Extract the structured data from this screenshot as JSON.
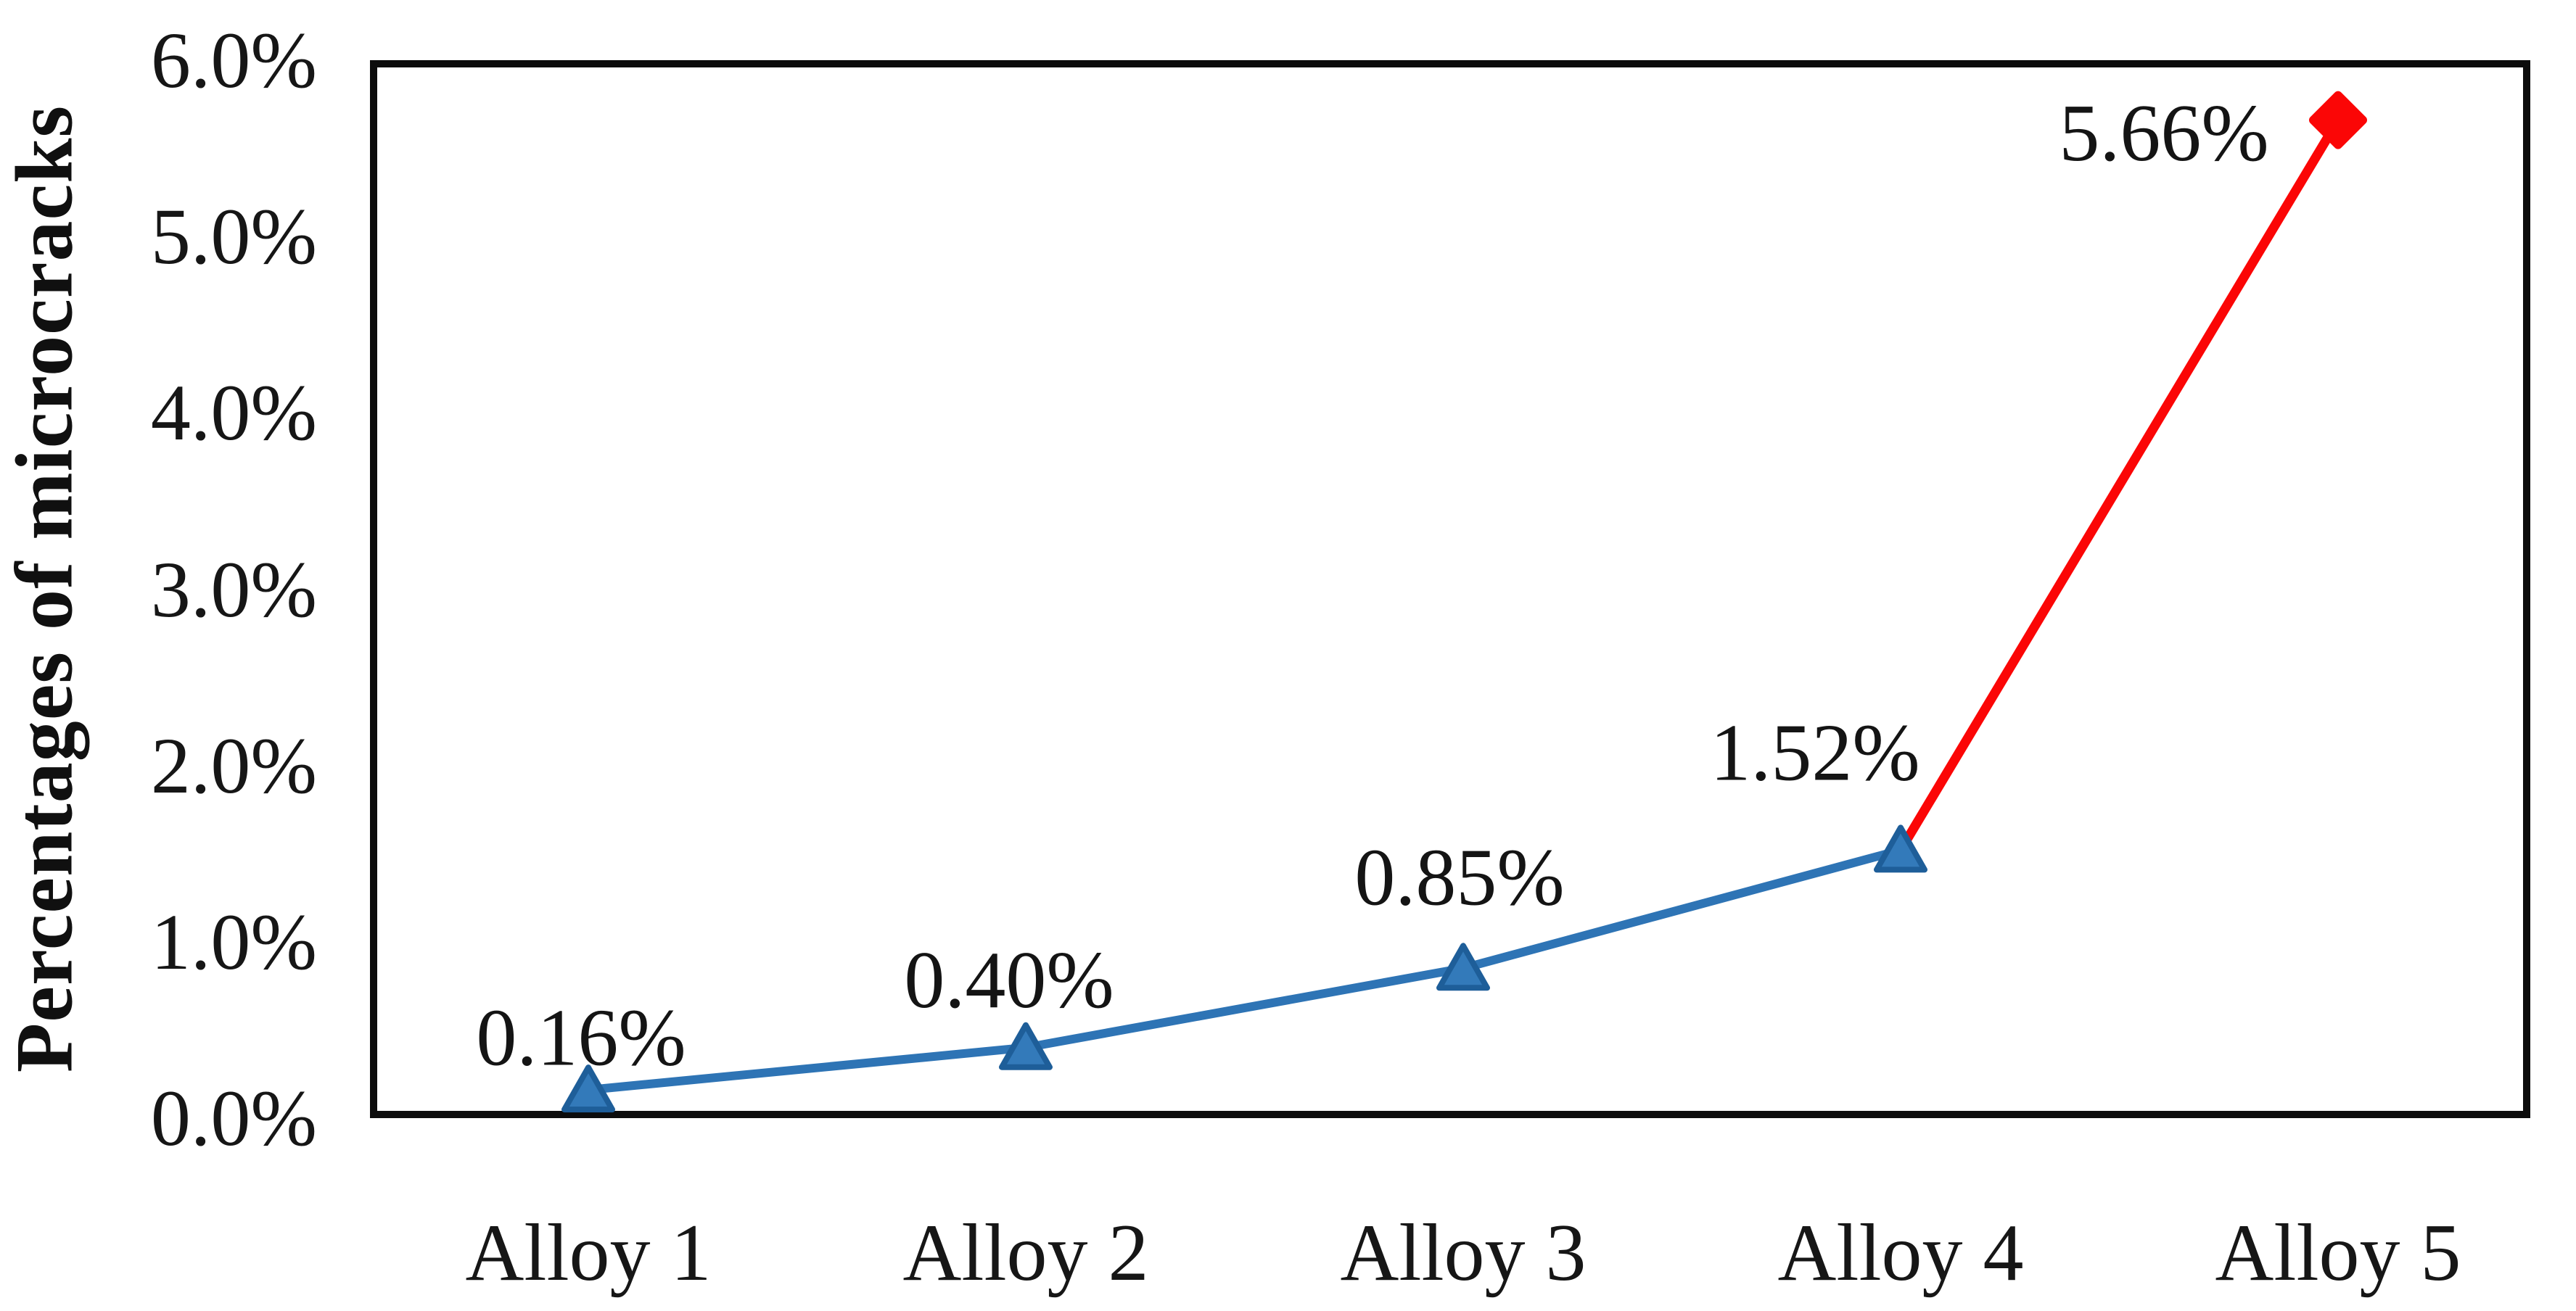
{
  "chart_data": {
    "type": "line",
    "title": "",
    "xlabel": "",
    "ylabel": "Percentages of microcracks",
    "categories": [
      "Alloy 1",
      "Alloy 2",
      "Alloy 3",
      "Alloy 4",
      "Alloy 5"
    ],
    "series": [
      {
        "name": "Percentage of microcracks",
        "values": [
          0.16,
          0.4,
          0.85,
          1.52,
          5.66
        ],
        "unit": "%"
      }
    ],
    "point_labels": [
      "0.16%",
      "0.40%",
      "0.85%",
      "1.52%",
      "5.66%"
    ],
    "y_ticks": [
      "0.0%",
      "1.0%",
      "2.0%",
      "3.0%",
      "4.0%",
      "5.0%",
      "6.0%"
    ],
    "y_tick_values": [
      0,
      1,
      2,
      3,
      4,
      5,
      6
    ],
    "ylim": [
      0,
      6
    ],
    "grid": false,
    "legend": false,
    "markers": [
      "triangle",
      "triangle",
      "triangle",
      "triangle",
      "diamond"
    ],
    "segments": [
      {
        "from": 0,
        "to": 3,
        "color_key": "blue"
      },
      {
        "from": 3,
        "to": 4,
        "color_key": "red"
      }
    ],
    "colors": {
      "blue": "#2E74B5",
      "blue_marker_fill": "#337ABA",
      "blue_marker_stroke": "#1E5E99",
      "red": "#FB0606",
      "frame": "#0C0C0C",
      "text": "#141414"
    }
  }
}
